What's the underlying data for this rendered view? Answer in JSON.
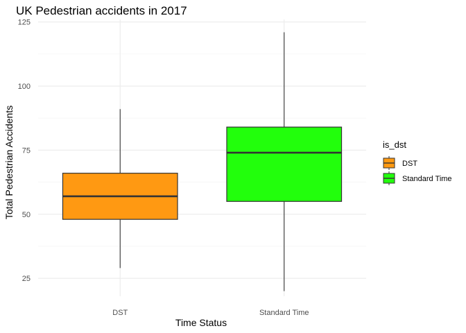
{
  "chart_data": {
    "type": "boxplot",
    "title": "UK Pedestrian accidents in 2017",
    "xlabel": "Time Status",
    "ylabel": "Total Pedestrian Accidents",
    "categories": [
      "DST",
      "Standard Time"
    ],
    "series": [
      {
        "name": "DST",
        "color": "#ff9912",
        "min": 29,
        "q1": 48,
        "median": 57,
        "q3": 66,
        "max": 91
      },
      {
        "name": "Standard Time",
        "color": "#22ff0c",
        "min": 20,
        "q1": 55,
        "median": 74,
        "q3": 84,
        "max": 121
      }
    ],
    "yticks": [
      25,
      50,
      75,
      100,
      125
    ],
    "ylim": [
      18,
      126
    ],
    "grid": true,
    "legend": {
      "title": "is_dst",
      "placement": "right",
      "entries": [
        "DST",
        "Standard Time"
      ]
    }
  }
}
